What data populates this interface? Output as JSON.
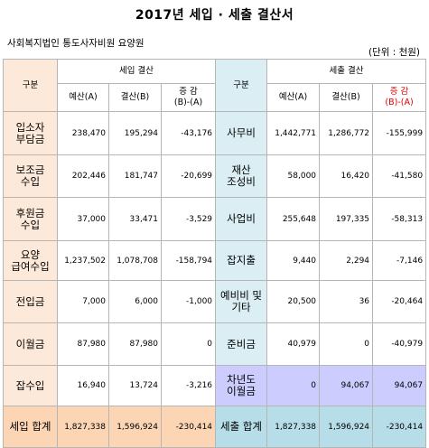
{
  "title": "2017년 세입 · 세출 결산서",
  "organization": "사회복지법인 통도사자비원 요양원",
  "unit": "(단위 : 천원)",
  "headers": {
    "category": "구분",
    "revenue_group": "세입 결산",
    "expense_group": "세출 결산",
    "budget": "예산(A)",
    "settlement": "결산(B)",
    "diff_line1": "증     감",
    "diff_line2": "(B)-(A)"
  },
  "revenue_rows": [
    {
      "label": "입소자 부담금",
      "budget": "238,470",
      "settlement": "195,294",
      "diff": "-43,176"
    },
    {
      "label": "보조금 수입",
      "budget": "202,446",
      "settlement": "181,747",
      "diff": "-20,699"
    },
    {
      "label": "후원금 수입",
      "budget": "37,000",
      "settlement": "33,471",
      "diff": "-3,529"
    },
    {
      "label": "요양 급여수입",
      "budget": "1,237,502",
      "settlement": "1,078,708",
      "diff": "-158,794"
    },
    {
      "label": "전입금",
      "budget": "7,000",
      "settlement": "6,000",
      "diff": "-1,000"
    },
    {
      "label": "이월금",
      "budget": "87,980",
      "settlement": "87,980",
      "diff": "0"
    },
    {
      "label": "잡수입",
      "budget": "16,940",
      "settlement": "13,724",
      "diff": "-3,216"
    }
  ],
  "expense_rows": [
    {
      "label": "사무비",
      "budget": "1,442,771",
      "settlement": "1,286,772",
      "diff": "-155,999"
    },
    {
      "label": "재산 조성비",
      "budget": "58,000",
      "settlement": "16,420",
      "diff": "-41,580"
    },
    {
      "label": "사업비",
      "budget": "255,648",
      "settlement": "197,335",
      "diff": "-58,313"
    },
    {
      "label": "잡지출",
      "budget": "9,440",
      "settlement": "2,294",
      "diff": "-7,146"
    },
    {
      "label": "예비비 및 기타",
      "budget": "20,500",
      "settlement": "36",
      "diff": "-20,464"
    },
    {
      "label": "준비금",
      "budget": "40,979",
      "settlement": "0",
      "diff": "-40,979"
    },
    {
      "label": "차년도 이월금",
      "budget": "0",
      "settlement": "94,067",
      "diff": "94,067"
    }
  ],
  "totals": {
    "revenue_label": "세입 합계",
    "revenue_budget": "1,827,338",
    "revenue_settlement": "1,596,924",
    "revenue_diff": "-230,414",
    "expense_label": "세출 합계",
    "expense_budget": "1,827,338",
    "expense_settlement": "1,596,924",
    "expense_diff": "-230,414"
  },
  "colors": {
    "revenue_category": "#fde9d9",
    "expense_category": "#dbeef4",
    "revenue_total": "#fcd5b4",
    "expense_total": "#b7dde8",
    "carryover_highlight": "#ccccff",
    "diff_header_expense": "#e00000"
  }
}
